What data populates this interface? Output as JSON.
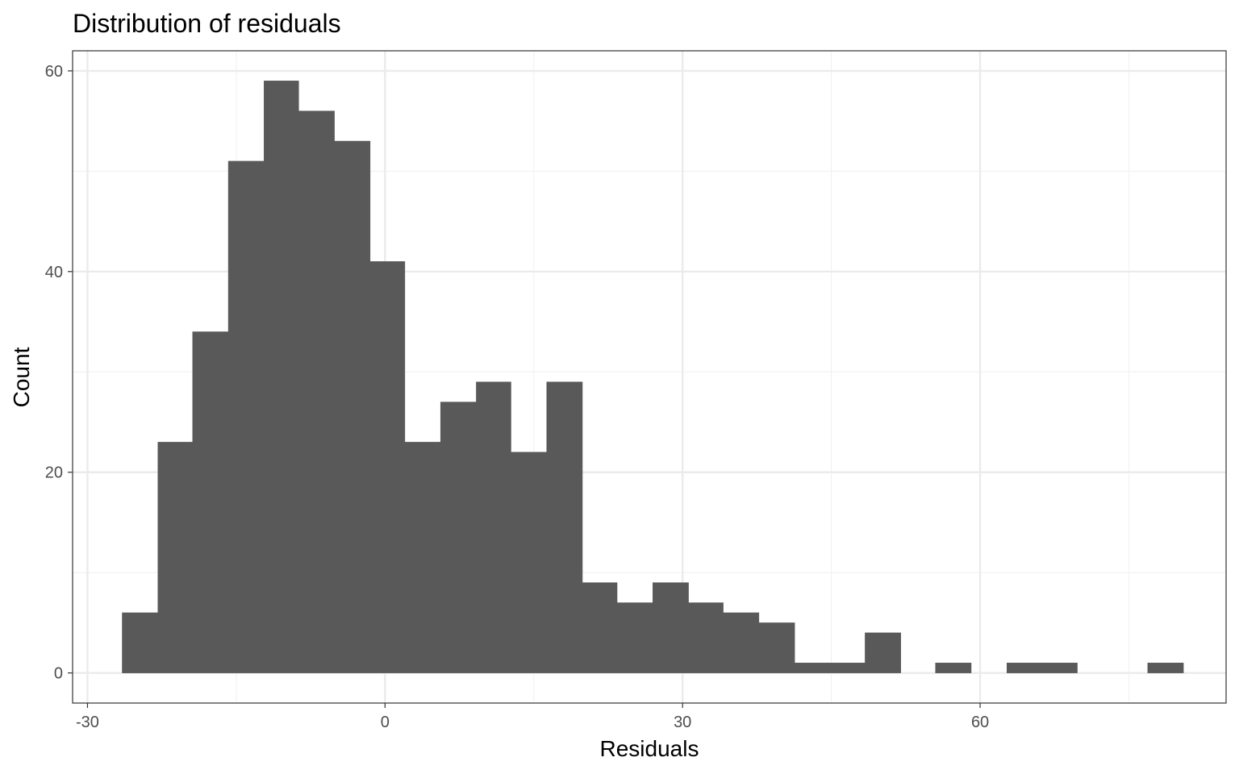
{
  "chart_data": {
    "type": "bar",
    "title": "Distribution of residuals",
    "xlabel": "Residuals",
    "ylabel": "Count",
    "xlim": [
      -31.5,
      84.8
    ],
    "ylim": [
      -3,
      62
    ],
    "x_ticks": [
      -30,
      0,
      30,
      60
    ],
    "y_ticks": [
      0,
      20,
      40,
      60
    ],
    "grid": true,
    "legend": "none",
    "bin_width": 3.57,
    "bins": [
      {
        "x_start": -26.5,
        "x_end": -22.9,
        "count": 6
      },
      {
        "x_start": -22.9,
        "x_end": -19.4,
        "count": 23
      },
      {
        "x_start": -19.4,
        "x_end": -15.8,
        "count": 34
      },
      {
        "x_start": -15.8,
        "x_end": -12.2,
        "count": 51
      },
      {
        "x_start": -12.2,
        "x_end": -8.7,
        "count": 59
      },
      {
        "x_start": -8.7,
        "x_end": -5.1,
        "count": 56
      },
      {
        "x_start": -5.1,
        "x_end": -1.5,
        "count": 53
      },
      {
        "x_start": -1.5,
        "x_end": 2.0,
        "count": 41
      },
      {
        "x_start": 2.0,
        "x_end": 5.6,
        "count": 23
      },
      {
        "x_start": 5.6,
        "x_end": 9.2,
        "count": 27
      },
      {
        "x_start": 9.2,
        "x_end": 12.7,
        "count": 29
      },
      {
        "x_start": 12.7,
        "x_end": 16.3,
        "count": 22
      },
      {
        "x_start": 16.3,
        "x_end": 19.9,
        "count": 29
      },
      {
        "x_start": 19.9,
        "x_end": 23.4,
        "count": 9
      },
      {
        "x_start": 23.4,
        "x_end": 27.0,
        "count": 7
      },
      {
        "x_start": 27.0,
        "x_end": 30.6,
        "count": 9
      },
      {
        "x_start": 30.6,
        "x_end": 34.1,
        "count": 7
      },
      {
        "x_start": 34.1,
        "x_end": 37.7,
        "count": 6
      },
      {
        "x_start": 37.7,
        "x_end": 41.3,
        "count": 5
      },
      {
        "x_start": 41.3,
        "x_end": 44.8,
        "count": 1
      },
      {
        "x_start": 44.8,
        "x_end": 48.4,
        "count": 1
      },
      {
        "x_start": 48.4,
        "x_end": 52.0,
        "count": 4
      },
      {
        "x_start": 52.0,
        "x_end": 55.5,
        "count": 0
      },
      {
        "x_start": 55.5,
        "x_end": 59.1,
        "count": 1
      },
      {
        "x_start": 59.1,
        "x_end": 62.7,
        "count": 0
      },
      {
        "x_start": 62.7,
        "x_end": 66.2,
        "count": 1
      },
      {
        "x_start": 66.2,
        "x_end": 69.8,
        "count": 1
      },
      {
        "x_start": 69.8,
        "x_end": 73.4,
        "count": 0
      },
      {
        "x_start": 73.4,
        "x_end": 76.9,
        "count": 0
      },
      {
        "x_start": 76.9,
        "x_end": 80.5,
        "count": 1
      }
    ],
    "colors": {
      "bar_fill": "#595959",
      "panel_border": "#333333",
      "grid_major": "#ebebeb",
      "grid_minor": "#f2f2f2",
      "tick_text": "#4d4d4d"
    }
  }
}
